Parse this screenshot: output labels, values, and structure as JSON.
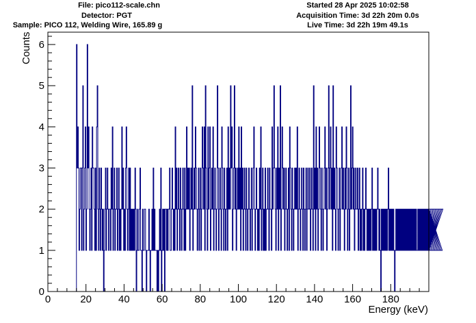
{
  "header": {
    "file": "File: pico112-scale.chn",
    "detector": "Detector: PGT",
    "sample": "Sample: PICO 112, Welding Wire, 165.89 g",
    "started": "Started 28 Apr 2025 10:02:58",
    "acquisition": "Acquisition Time: 3d 22h 20m 0.0s",
    "live": "Live Time: 3d 22h 19m 49.1s"
  },
  "chart_data": {
    "type": "line",
    "step": true,
    "xlabel": "Energy (keV)",
    "ylabel": "Counts",
    "xlim": [
      0,
      200
    ],
    "ylim": [
      0,
      6.3
    ],
    "x_ticks": [
      0,
      20,
      40,
      60,
      80,
      100,
      120,
      140,
      160,
      180
    ],
    "y_ticks": [
      0,
      1,
      2,
      3,
      4,
      5,
      6
    ],
    "grid": false,
    "line_color": "#000080",
    "x_start": 15,
    "bin_width": 0.33,
    "values": [
      6,
      3,
      4,
      3,
      1,
      2,
      3,
      3,
      1,
      3,
      5,
      1,
      2,
      3,
      4,
      1,
      2,
      6,
      3,
      4,
      2,
      1,
      2,
      3,
      1,
      4,
      3,
      3,
      2,
      1,
      3,
      1,
      4,
      5,
      2,
      1,
      3,
      2,
      1,
      3,
      2,
      1,
      2,
      0,
      1,
      2,
      3,
      1,
      2,
      3,
      2,
      1,
      2,
      2,
      1,
      3,
      2,
      4,
      1,
      2,
      3,
      1,
      2,
      2,
      3,
      1,
      2,
      3,
      1,
      2,
      1,
      2,
      4,
      2,
      3,
      1,
      2,
      1,
      3,
      4,
      2,
      1,
      2,
      3,
      1,
      3,
      1,
      2,
      1,
      2,
      1,
      2,
      1,
      3,
      2,
      0,
      1,
      2,
      1,
      1,
      2,
      3,
      1,
      1,
      0,
      2,
      1,
      1,
      2,
      2,
      1,
      0,
      1,
      1,
      1,
      2,
      1,
      0,
      1,
      1,
      2,
      1,
      3,
      1,
      2,
      1,
      1,
      1,
      0,
      1,
      0,
      1,
      2,
      1,
      3,
      0,
      1,
      2,
      1,
      2,
      0,
      2,
      2,
      1,
      2,
      1,
      2,
      2,
      3,
      1,
      1,
      2,
      3,
      2,
      1,
      2,
      1,
      4,
      2,
      3,
      1,
      2,
      3,
      2,
      1,
      3,
      2,
      1,
      2,
      3,
      2,
      1,
      3,
      1,
      2,
      4,
      2,
      3,
      2,
      3,
      1,
      2,
      3,
      2,
      5,
      1,
      2,
      3,
      2,
      4,
      3,
      2,
      1,
      2,
      3,
      1,
      2,
      3,
      1,
      2,
      4,
      3,
      2,
      4,
      1,
      5,
      3,
      2,
      1,
      4,
      2,
      3,
      4,
      1,
      2,
      3,
      2,
      4,
      1,
      2,
      3,
      2,
      1,
      2,
      5,
      3,
      1,
      2,
      3,
      2,
      1,
      4,
      3,
      2,
      1,
      3,
      2,
      1,
      2,
      3,
      1,
      4,
      2,
      3,
      2,
      5,
      3,
      4,
      1,
      2,
      3,
      5,
      2,
      3,
      1,
      2,
      3,
      2,
      4,
      2,
      3,
      1,
      4,
      2,
      3,
      1,
      2,
      3,
      2,
      1,
      3,
      2,
      1,
      2,
      3,
      2,
      1,
      2,
      3,
      1,
      2,
      3,
      4,
      2,
      1,
      2,
      3,
      2,
      1,
      2,
      1,
      3,
      2,
      4,
      1,
      2,
      3,
      1,
      2,
      1,
      3,
      1,
      2,
      2,
      3,
      2,
      1,
      3,
      2,
      2,
      1,
      4,
      2,
      3,
      5,
      3,
      2,
      1,
      3,
      2,
      4,
      1,
      3,
      2,
      5,
      1,
      2,
      4,
      3,
      2,
      3,
      1,
      2,
      3,
      2,
      1,
      2,
      3,
      1,
      4,
      3,
      2,
      1,
      3,
      2,
      1,
      2,
      3,
      2,
      3,
      2,
      4,
      1,
      2,
      3,
      2,
      1,
      2,
      3,
      2,
      1,
      3,
      2,
      1,
      2,
      3,
      1,
      2,
      3,
      2,
      2,
      3,
      1,
      2,
      3,
      2,
      1,
      5,
      2,
      3,
      1,
      4,
      2,
      3,
      1,
      2,
      4,
      3,
      2,
      1,
      3,
      2,
      1,
      2,
      3,
      4,
      2,
      3,
      1,
      2,
      3,
      5,
      2,
      3,
      4,
      2,
      3,
      1,
      5,
      2,
      3,
      2,
      1,
      4,
      3,
      2,
      1,
      2,
      3,
      1,
      2,
      3,
      4,
      2,
      3,
      2,
      1,
      3,
      2,
      4,
      3,
      1,
      2,
      3,
      1,
      2,
      5,
      2,
      3,
      4,
      2,
      3,
      1,
      2,
      3,
      2,
      2,
      3,
      1,
      2,
      3,
      1,
      2,
      1,
      2,
      3,
      1,
      2,
      1,
      2,
      3,
      2,
      1,
      2,
      1,
      2,
      1,
      2,
      1,
      2,
      3,
      1,
      2,
      1,
      2,
      1,
      2,
      1,
      2,
      3,
      2,
      1,
      2,
      1,
      0,
      2,
      1,
      2,
      1,
      2,
      1,
      2,
      1,
      2,
      1,
      2,
      3,
      1,
      2,
      1,
      2,
      1,
      2,
      1,
      2,
      1,
      0,
      1,
      2,
      1,
      2,
      1,
      2,
      1,
      2,
      1,
      2,
      1,
      2,
      1,
      2,
      1,
      2,
      1,
      2,
      1,
      2,
      1,
      2,
      1,
      2,
      1,
      2,
      1,
      2,
      1,
      2,
      1,
      2,
      1,
      2,
      1,
      1,
      2,
      1,
      2,
      1,
      2,
      1,
      2,
      1,
      2,
      1,
      2,
      1,
      2,
      1,
      2,
      1,
      2,
      1,
      2,
      1,
      2,
      1,
      2,
      1,
      2,
      1,
      2,
      1,
      2,
      1,
      2,
      1,
      2,
      1,
      2,
      1,
      2,
      1,
      2,
      1,
      2
    ]
  }
}
